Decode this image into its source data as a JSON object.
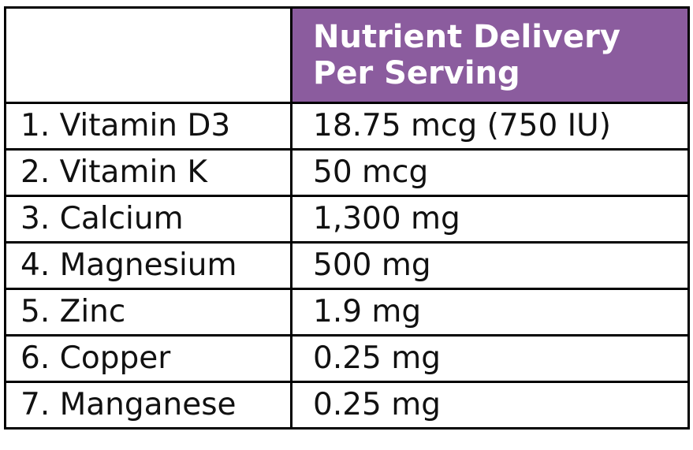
{
  "table": {
    "header": "Nutrient Delivery Per Serving",
    "rows": [
      [
        "1. Vitamin D3",
        "18.75 mcg (750 IU)"
      ],
      [
        "2. Vitamin K",
        "50 mcg"
      ],
      [
        "3. Calcium",
        "1,300 mg"
      ],
      [
        "4. Magnesium",
        "500 mg"
      ],
      [
        "5. Zinc",
        "1.9 mg"
      ],
      [
        "6. Copper",
        "0.25 mg"
      ],
      [
        "7. Manganese",
        "0.25 mg"
      ]
    ]
  }
}
